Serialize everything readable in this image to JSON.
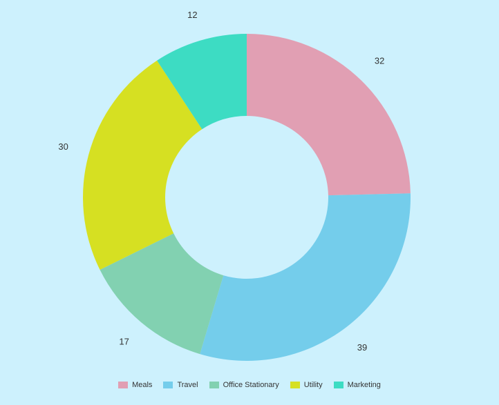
{
  "chart_data": {
    "type": "pie",
    "donut": true,
    "categories": [
      "Meals",
      "Travel",
      "Office Stationary",
      "Utility",
      "Marketing"
    ],
    "values": [
      32,
      39,
      17,
      30,
      12
    ],
    "colors": [
      "#e19fb3",
      "#74cdeb",
      "#82d1b1",
      "#d6e022",
      "#3ddcc3"
    ],
    "legend_position": "bottom",
    "title": ""
  }
}
